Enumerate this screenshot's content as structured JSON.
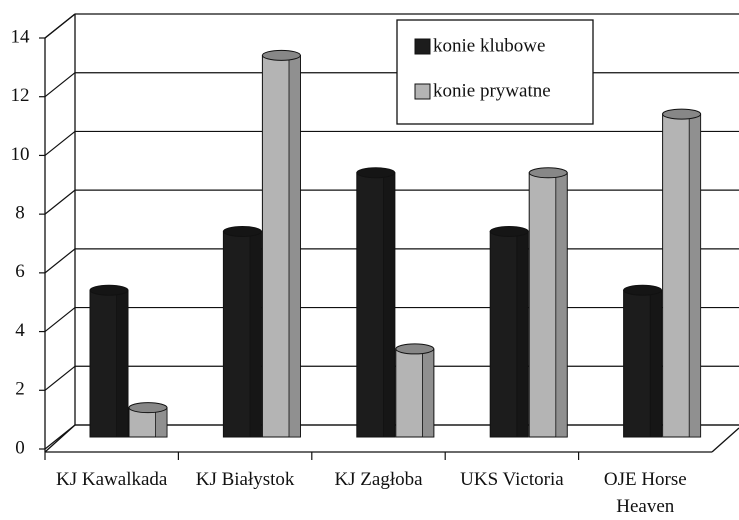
{
  "chart_data": {
    "type": "bar3d",
    "categories": [
      "KJ Kawalkada",
      "KJ Białystok",
      "KJ Zagłoba",
      "UKS Victoria",
      "OJE Horse Heaven"
    ],
    "series": [
      {
        "name": "konie klubowe",
        "color": "#1c1c1c",
        "values": [
          5,
          7,
          9,
          7,
          5
        ]
      },
      {
        "name": "konie prywatne",
        "color": "#b4b4b4",
        "values": [
          1,
          13,
          3,
          9,
          11
        ]
      }
    ],
    "ylim": [
      0,
      14
    ],
    "yticks": [
      0,
      2,
      4,
      6,
      8,
      10,
      12,
      14
    ],
    "grid": true,
    "legend": "top-right"
  }
}
